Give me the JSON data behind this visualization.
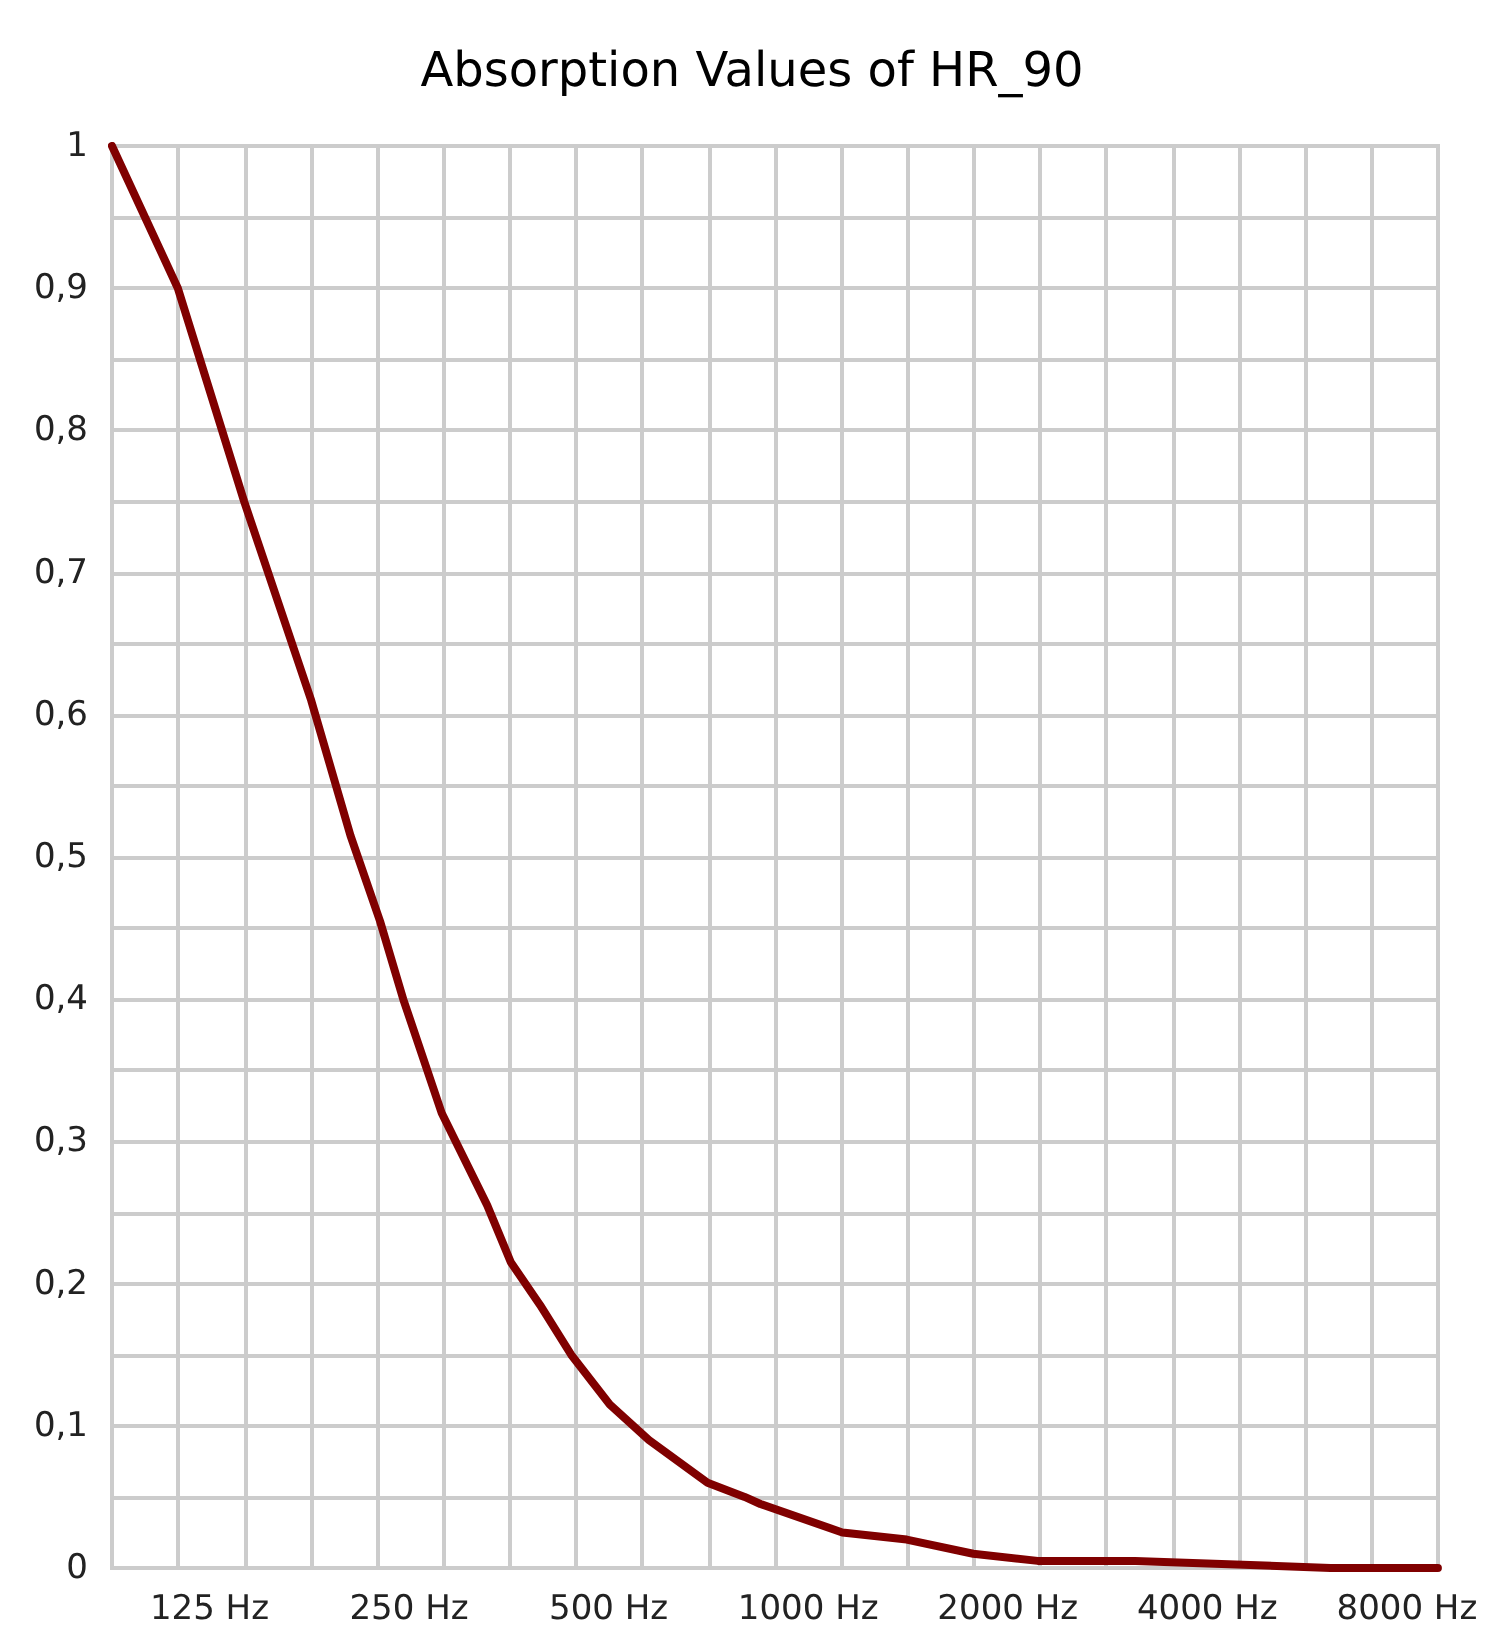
{
  "chart_data": {
    "type": "line",
    "title": "Absorption Values of HR_90",
    "log": "x",
    "grid": true,
    "marker": "none",
    "color": "#800000",
    "x": [
      89.1,
      112,
      141,
      178,
      204,
      226,
      245,
      280,
      328,
      356,
      394,
      439,
      502,
      575,
      705,
      802,
      847,
      1126,
      1408,
      1774,
      2219,
      3114,
      6137,
      8910
    ],
    "values": [
      1.0,
      0.9,
      0.75,
      0.61,
      0.515,
      0.455,
      0.4,
      0.32,
      0.255,
      0.215,
      0.185,
      0.15,
      0.115,
      0.09,
      0.06,
      0.05,
      0.045,
      0.025,
      0.02,
      0.01,
      0.005,
      0.005,
      0.0,
      0.0
    ],
    "xlim": [
      89.1,
      8913
    ],
    "xticks": [
      {
        "value": 89.1,
        "label": null
      },
      {
        "value": 112.2,
        "label": null
      },
      {
        "value": 125,
        "label": "125 Hz"
      },
      {
        "value": 141.3,
        "label": null
      },
      {
        "value": 177.8,
        "label": null
      },
      {
        "value": 223.9,
        "label": null
      },
      {
        "value": 250,
        "label": "250 Hz"
      },
      {
        "value": 281.8,
        "label": null
      },
      {
        "value": 354.8,
        "label": null
      },
      {
        "value": 446.7,
        "label": null
      },
      {
        "value": 500,
        "label": "500 Hz"
      },
      {
        "value": 562.3,
        "label": null
      },
      {
        "value": 707.9,
        "label": null
      },
      {
        "value": 891,
        "label": null
      },
      {
        "value": 1000,
        "label": "1000 Hz"
      },
      {
        "value": 1122,
        "label": null
      },
      {
        "value": 1413,
        "label": null
      },
      {
        "value": 1778,
        "label": null
      },
      {
        "value": 2000,
        "label": "2000 Hz"
      },
      {
        "value": 2239,
        "label": null
      },
      {
        "value": 2818,
        "label": null
      },
      {
        "value": 3548,
        "label": null
      },
      {
        "value": 4000,
        "label": "4000 Hz"
      },
      {
        "value": 4467,
        "label": null
      },
      {
        "value": 5623,
        "label": null
      },
      {
        "value": 7079,
        "label": null
      },
      {
        "value": 8000,
        "label": "8000 Hz"
      },
      {
        "value": 8913,
        "label": null
      }
    ],
    "ylim": [
      0,
      1
    ],
    "yticks": [
      {
        "value": 0,
        "label": "0"
      },
      {
        "value": 0.05,
        "label": null
      },
      {
        "value": 0.1,
        "label": "0,1"
      },
      {
        "value": 0.15,
        "label": null
      },
      {
        "value": 0.2,
        "label": "0,2"
      },
      {
        "value": 0.25,
        "label": null
      },
      {
        "value": 0.3,
        "label": "0,3"
      },
      {
        "value": 0.35,
        "label": null
      },
      {
        "value": 0.4,
        "label": "0,4"
      },
      {
        "value": 0.45,
        "label": null
      },
      {
        "value": 0.5,
        "label": "0,5"
      },
      {
        "value": 0.55,
        "label": null
      },
      {
        "value": 0.6,
        "label": "0,6"
      },
      {
        "value": 0.65,
        "label": null
      },
      {
        "value": 0.7,
        "label": "0,7"
      },
      {
        "value": 0.75,
        "label": null
      },
      {
        "value": 0.8,
        "label": "0,8"
      },
      {
        "value": 0.85,
        "label": null
      },
      {
        "value": 0.9,
        "label": "0,9"
      },
      {
        "value": 0.95,
        "label": null
      },
      {
        "value": 1,
        "label": "1"
      }
    ]
  }
}
